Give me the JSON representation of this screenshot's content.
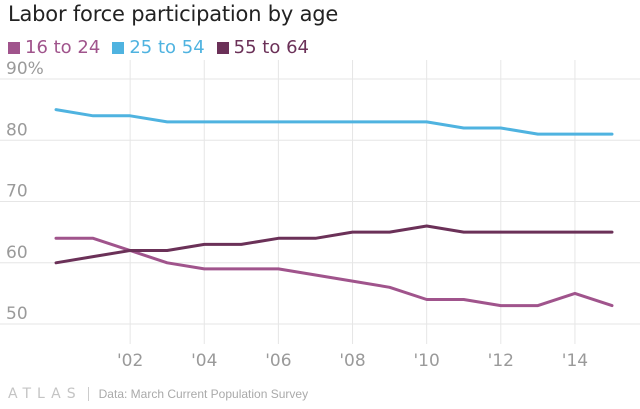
{
  "chart_data": {
    "type": "line",
    "title": "Labor force participation by age",
    "x": [
      2000,
      2001,
      2002,
      2003,
      2004,
      2005,
      2006,
      2007,
      2008,
      2009,
      2010,
      2011,
      2012,
      2013,
      2014,
      2015
    ],
    "series": [
      {
        "name": "16 to 24",
        "color": "#a0548c",
        "values": [
          64,
          64,
          62,
          60,
          59,
          59,
          59,
          58,
          57,
          56,
          54,
          54,
          53,
          53,
          55,
          53
        ]
      },
      {
        "name": "25 to 54",
        "color": "#4fb3e0",
        "values": [
          85,
          84,
          84,
          83,
          83,
          83,
          83,
          83,
          83,
          83,
          83,
          82,
          82,
          81,
          81,
          81
        ]
      },
      {
        "name": "55 to 64",
        "color": "#6b3158",
        "values": [
          60,
          61,
          62,
          62,
          63,
          63,
          64,
          64,
          65,
          65,
          66,
          65,
          65,
          65,
          65,
          65
        ]
      }
    ],
    "yticks": [
      {
        "value": 90,
        "label": "90%"
      },
      {
        "value": 80,
        "label": "80"
      },
      {
        "value": 70,
        "label": "70"
      },
      {
        "value": 60,
        "label": "60"
      },
      {
        "value": 50,
        "label": "50"
      }
    ],
    "xticks": [
      {
        "value": 2002,
        "label": "'02"
      },
      {
        "value": 2004,
        "label": "'04"
      },
      {
        "value": 2006,
        "label": "'06"
      },
      {
        "value": 2008,
        "label": "'08"
      },
      {
        "value": 2010,
        "label": "'10"
      },
      {
        "value": 2012,
        "label": "'12"
      },
      {
        "value": 2014,
        "label": "'14"
      }
    ],
    "xlim": [
      2000,
      2015
    ],
    "ylim": [
      50,
      90
    ],
    "xlabel": "",
    "ylabel": "",
    "grid": true
  },
  "footer": {
    "brand": "ATLAS",
    "source": "Data: March Current Population Survey"
  }
}
